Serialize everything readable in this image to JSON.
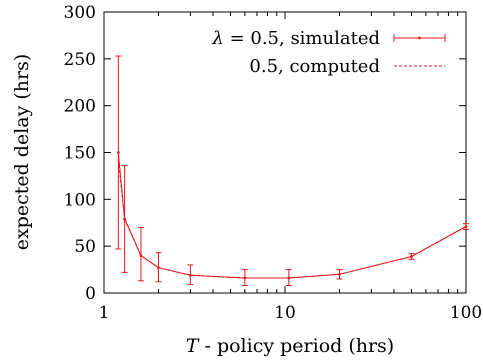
{
  "chart_data": {
    "type": "line",
    "xlabel_var": "T",
    "xlabel_rest": " - policy period (hrs)",
    "ylabel": "expected delay (hrs)",
    "x_scale": "log",
    "xlim": [
      1,
      100
    ],
    "ylim": [
      0,
      300
    ],
    "x_ticks": [
      1,
      10,
      100
    ],
    "x_tick_labels": [
      "1",
      "10",
      "100"
    ],
    "y_ticks": [
      0,
      50,
      100,
      150,
      200,
      250,
      300
    ],
    "y_tick_labels": [
      "0",
      "50",
      "100",
      "150",
      "200",
      "250",
      "300"
    ],
    "grid": false,
    "legend_position": "top-right",
    "series_color": "#e41a1c",
    "series": [
      {
        "name": "λ = 0.5, simulated",
        "legend_var": "λ",
        "legend_rest": " = 0.5, simulated",
        "style": "solid-with-errorbars",
        "x": [
          1.2,
          1.3,
          1.6,
          2,
          3,
          6,
          10.5,
          20,
          50,
          100
        ],
        "y": [
          150,
          79,
          40,
          27,
          19,
          16,
          16,
          20,
          39,
          71
        ],
        "err_low": [
          47,
          22,
          13,
          12,
          9,
          8,
          8,
          15,
          36,
          68
        ],
        "err_high": [
          253,
          136,
          70,
          43,
          30,
          25,
          25,
          25,
          42,
          74
        ]
      },
      {
        "name": "0.5, computed",
        "style": "dashed",
        "x": [
          1.2,
          1.3,
          1.6,
          2,
          3,
          6,
          10.5,
          20,
          50,
          100
        ],
        "y": [
          142,
          80,
          40,
          27,
          19,
          16,
          16,
          20,
          39,
          71
        ]
      }
    ]
  }
}
